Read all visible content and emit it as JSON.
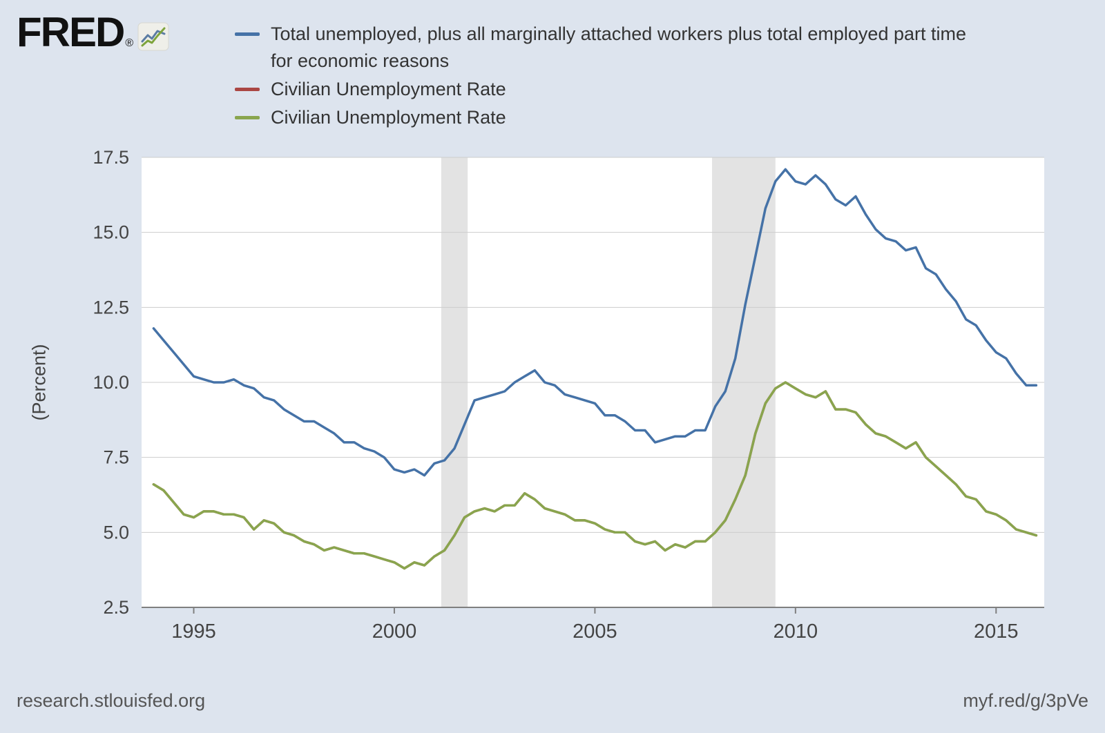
{
  "brand": {
    "logo_text": "FRED",
    "registered_mark": "®"
  },
  "footer": {
    "left": "research.stlouisfed.org",
    "right": "myf.red/g/3pVe"
  },
  "colors": {
    "background": "#dde4ee",
    "plot_bg": "#ffffff",
    "recession": "#e3e3e3",
    "grid": "#cccccc",
    "axis": "#7f7f7f",
    "tick_text": "#444444",
    "legend_text": "#333333",
    "footer_text": "#555555"
  },
  "chart_data": {
    "type": "line",
    "title": "",
    "xlabel": "",
    "ylabel": "(Percent)",
    "xlim": [
      1993.7,
      2016.2
    ],
    "ylim": [
      2.5,
      17.5
    ],
    "yticks": [
      2.5,
      5.0,
      7.5,
      10.0,
      12.5,
      15.0,
      17.5
    ],
    "xticks": [
      1995,
      2000,
      2005,
      2010,
      2015
    ],
    "grid": "horizontal",
    "legend_position": "top",
    "recessions": [
      [
        2001.17,
        2001.83
      ],
      [
        2007.92,
        2009.5
      ]
    ],
    "x": [
      1994,
      1994.25,
      1994.5,
      1994.75,
      1995,
      1995.25,
      1995.5,
      1995.75,
      1996,
      1996.25,
      1996.5,
      1996.75,
      1997,
      1997.25,
      1997.5,
      1997.75,
      1998,
      1998.25,
      1998.5,
      1998.75,
      1999,
      1999.25,
      1999.5,
      1999.75,
      2000,
      2000.25,
      2000.5,
      2000.75,
      2001,
      2001.25,
      2001.5,
      2001.75,
      2002,
      2002.25,
      2002.5,
      2002.75,
      2003,
      2003.25,
      2003.5,
      2003.75,
      2004,
      2004.25,
      2004.5,
      2004.75,
      2005,
      2005.25,
      2005.5,
      2005.75,
      2006,
      2006.25,
      2006.5,
      2006.75,
      2007,
      2007.25,
      2007.5,
      2007.75,
      2008,
      2008.25,
      2008.5,
      2008.75,
      2009,
      2009.25,
      2009.5,
      2009.75,
      2010,
      2010.25,
      2010.5,
      2010.75,
      2011,
      2011.25,
      2011.5,
      2011.75,
      2012,
      2012.25,
      2012.5,
      2012.75,
      2013,
      2013.25,
      2013.5,
      2013.75,
      2014,
      2014.25,
      2014.5,
      2014.75,
      2015,
      2015.25,
      2015.5,
      2015.75,
      2016
    ],
    "series": [
      {
        "name": "Total unemployed, plus all marginally attached workers plus total employed part time for economic reasons",
        "color": "#4572a7",
        "values": [
          11.8,
          11.4,
          11.0,
          10.6,
          10.2,
          10.1,
          10.0,
          10.0,
          10.1,
          9.9,
          9.8,
          9.5,
          9.4,
          9.1,
          8.9,
          8.7,
          8.7,
          8.5,
          8.3,
          8.0,
          8.0,
          7.8,
          7.7,
          7.5,
          7.1,
          7.0,
          7.1,
          6.9,
          7.3,
          7.4,
          7.8,
          8.6,
          9.4,
          9.5,
          9.6,
          9.7,
          10.0,
          10.2,
          10.4,
          10.0,
          9.9,
          9.6,
          9.5,
          9.4,
          9.3,
          8.9,
          8.9,
          8.7,
          8.4,
          8.4,
          8.0,
          8.1,
          8.2,
          8.2,
          8.4,
          8.4,
          9.2,
          9.7,
          10.8,
          12.6,
          14.2,
          15.8,
          16.7,
          17.1,
          16.7,
          16.6,
          16.9,
          16.6,
          16.1,
          15.9,
          16.2,
          15.6,
          15.1,
          14.8,
          14.7,
          14.4,
          14.5,
          13.8,
          13.6,
          13.1,
          12.7,
          12.1,
          11.9,
          11.4,
          11.0,
          10.8,
          10.3,
          9.9,
          9.9
        ]
      },
      {
        "name": "Civilian Unemployment Rate",
        "color": "#aa4643",
        "values": [
          6.6,
          6.4,
          6.0,
          5.6,
          5.5,
          5.7,
          5.7,
          5.6,
          5.6,
          5.5,
          5.1,
          5.4,
          5.3,
          5.0,
          4.9,
          4.7,
          4.6,
          4.4,
          4.5,
          4.4,
          4.3,
          4.3,
          4.2,
          4.1,
          4.0,
          3.8,
          4.0,
          3.9,
          4.2,
          4.4,
          4.9,
          5.5,
          5.7,
          5.8,
          5.7,
          5.9,
          5.9,
          6.3,
          6.1,
          5.8,
          5.7,
          5.6,
          5.4,
          5.4,
          5.3,
          5.1,
          5.0,
          5.0,
          4.7,
          4.6,
          4.7,
          4.4,
          4.6,
          4.5,
          4.7,
          4.7,
          5.0,
          5.4,
          6.1,
          6.9,
          8.3,
          9.3,
          9.8,
          10.0,
          9.8,
          9.6,
          9.5,
          9.7,
          9.1,
          9.1,
          9.0,
          8.6,
          8.3,
          8.2,
          8.0,
          7.8,
          8.0,
          7.5,
          7.2,
          6.9,
          6.6,
          6.2,
          6.1,
          5.7,
          5.6,
          5.4,
          5.1,
          5.0,
          4.9
        ]
      },
      {
        "name": "Civilian Unemployment Rate",
        "color": "#89a54e",
        "values": [
          6.6,
          6.4,
          6.0,
          5.6,
          5.5,
          5.7,
          5.7,
          5.6,
          5.6,
          5.5,
          5.1,
          5.4,
          5.3,
          5.0,
          4.9,
          4.7,
          4.6,
          4.4,
          4.5,
          4.4,
          4.3,
          4.3,
          4.2,
          4.1,
          4.0,
          3.8,
          4.0,
          3.9,
          4.2,
          4.4,
          4.9,
          5.5,
          5.7,
          5.8,
          5.7,
          5.9,
          5.9,
          6.3,
          6.1,
          5.8,
          5.7,
          5.6,
          5.4,
          5.4,
          5.3,
          5.1,
          5.0,
          5.0,
          4.7,
          4.6,
          4.7,
          4.4,
          4.6,
          4.5,
          4.7,
          4.7,
          5.0,
          5.4,
          6.1,
          6.9,
          8.3,
          9.3,
          9.8,
          10.0,
          9.8,
          9.6,
          9.5,
          9.7,
          9.1,
          9.1,
          9.0,
          8.6,
          8.3,
          8.2,
          8.0,
          7.8,
          8.0,
          7.5,
          7.2,
          6.9,
          6.6,
          6.2,
          6.1,
          5.7,
          5.6,
          5.4,
          5.1,
          5.0,
          4.9
        ]
      }
    ]
  }
}
